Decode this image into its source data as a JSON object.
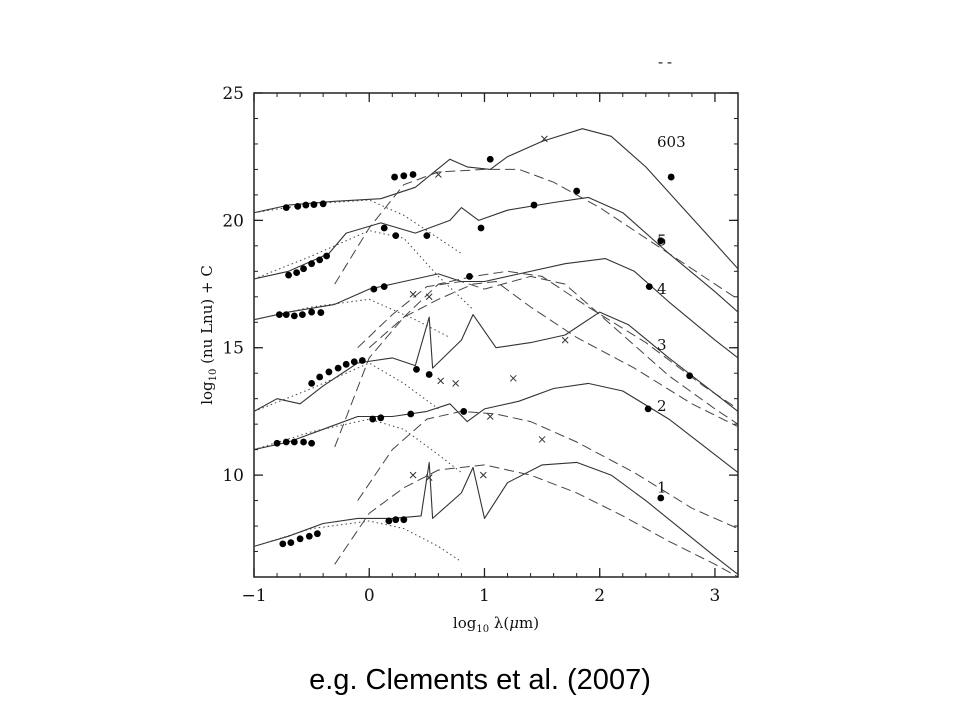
{
  "slide": {
    "caption": "e.g. Clements et al. (2007)",
    "corner_mark": "--"
  },
  "chart_data": {
    "type": "line",
    "title": "",
    "xlabel": "log10 λ(μm)",
    "ylabel": "log10 (nu Lnu) + C",
    "xlim": [
      -1,
      3.2
    ],
    "ylim": [
      6,
      25
    ],
    "xticks": [
      -1,
      0,
      1,
      2,
      3
    ],
    "xtick_labels": [
      "−1",
      "0",
      "1",
      "2",
      "3"
    ],
    "yticks": [
      10,
      15,
      20,
      25
    ],
    "ytick_labels": [
      "10",
      "15",
      "20",
      "25"
    ],
    "grid": false,
    "legend": "none",
    "series": [
      {
        "name": "603",
        "total_model": [
          [
            -1,
            20.3
          ],
          [
            -0.7,
            20.6
          ],
          [
            -0.3,
            20.75
          ],
          [
            0.1,
            20.85
          ],
          [
            0.4,
            21.3
          ],
          [
            0.7,
            22.4
          ],
          [
            0.85,
            22.1
          ],
          [
            1.05,
            22.0
          ],
          [
            1.2,
            22.5
          ],
          [
            1.5,
            23.1
          ],
          [
            1.85,
            23.6
          ],
          [
            2.1,
            23.3
          ],
          [
            2.4,
            22.1
          ],
          [
            2.7,
            20.6
          ],
          [
            3.0,
            19.1
          ],
          [
            3.2,
            18.1
          ]
        ],
        "stellar_model": [
          [
            -1,
            20.3
          ],
          [
            -0.5,
            20.65
          ],
          [
            0,
            20.8
          ],
          [
            0.3,
            20.2
          ],
          [
            0.5,
            19.6
          ],
          [
            0.8,
            18.7
          ]
        ],
        "dust_model": [
          [
            -0.3,
            17.5
          ],
          [
            0,
            19.7
          ],
          [
            0.3,
            21.4
          ],
          [
            0.6,
            21.9
          ],
          [
            1.0,
            22.0
          ],
          [
            1.3,
            22.0
          ],
          [
            1.6,
            21.5
          ],
          [
            2.0,
            20.5
          ],
          [
            2.5,
            19.0
          ],
          [
            3.0,
            17.5
          ],
          [
            3.2,
            16.9
          ]
        ],
        "data_points": [
          [
            -0.72,
            20.5
          ],
          [
            -0.62,
            20.55
          ],
          [
            -0.55,
            20.6
          ],
          [
            -0.48,
            20.62
          ],
          [
            -0.4,
            20.65
          ],
          [
            0.22,
            21.7
          ],
          [
            0.3,
            21.75
          ],
          [
            0.38,
            21.8
          ],
          [
            1.05,
            22.4
          ],
          [
            1.8,
            21.15
          ],
          [
            2.62,
            21.7
          ]
        ],
        "upper_limits": [
          [
            0.6,
            21.8
          ],
          [
            1.52,
            23.2
          ]
        ]
      },
      {
        "name": "5",
        "total_model": [
          [
            -1,
            17.7
          ],
          [
            -0.7,
            18.0
          ],
          [
            -0.35,
            18.7
          ],
          [
            -0.2,
            19.5
          ],
          [
            0.1,
            19.9
          ],
          [
            0.4,
            19.5
          ],
          [
            0.7,
            20.0
          ],
          [
            0.8,
            20.5
          ],
          [
            0.95,
            20.0
          ],
          [
            1.2,
            20.4
          ],
          [
            1.6,
            20.7
          ],
          [
            1.9,
            20.9
          ],
          [
            2.2,
            20.3
          ],
          [
            2.6,
            18.7
          ],
          [
            3.0,
            17.2
          ],
          [
            3.2,
            16.4
          ]
        ],
        "stellar_model": [
          [
            -1,
            17.7
          ],
          [
            -0.5,
            18.6
          ],
          [
            0,
            19.6
          ],
          [
            0.3,
            19.3
          ],
          [
            0.6,
            17.8
          ],
          [
            0.9,
            16.5
          ]
        ],
        "dust_model": [
          [
            -0.1,
            15.0
          ],
          [
            0.2,
            16.3
          ],
          [
            0.5,
            17.4
          ],
          [
            0.8,
            17.6
          ],
          [
            1.0,
            17.3
          ],
          [
            1.4,
            17.8
          ],
          [
            1.7,
            17.5
          ],
          [
            2.1,
            15.9
          ],
          [
            2.6,
            13.9
          ],
          [
            3.0,
            12.6
          ],
          [
            3.2,
            12.0
          ]
        ],
        "data_points": [
          [
            -0.7,
            17.85
          ],
          [
            -0.63,
            17.95
          ],
          [
            -0.57,
            18.1
          ],
          [
            -0.5,
            18.3
          ],
          [
            -0.43,
            18.45
          ],
          [
            -0.37,
            18.6
          ],
          [
            0.13,
            19.7
          ],
          [
            0.23,
            19.4
          ],
          [
            0.5,
            19.4
          ],
          [
            0.97,
            19.7
          ],
          [
            1.43,
            20.6
          ],
          [
            2.53,
            19.2
          ]
        ],
        "upper_limits": []
      },
      {
        "name": "4",
        "total_model": [
          [
            -1,
            16.1
          ],
          [
            -0.7,
            16.4
          ],
          [
            -0.3,
            16.7
          ],
          [
            0,
            17.3
          ],
          [
            0.3,
            17.6
          ],
          [
            0.6,
            17.9
          ],
          [
            0.8,
            17.6
          ],
          [
            1.0,
            17.6
          ],
          [
            1.3,
            17.9
          ],
          [
            1.7,
            18.3
          ],
          [
            2.05,
            18.5
          ],
          [
            2.3,
            18.0
          ],
          [
            2.6,
            16.8
          ],
          [
            3.0,
            15.3
          ],
          [
            3.2,
            14.6
          ]
        ],
        "stellar_model": [
          [
            -1,
            16.1
          ],
          [
            -0.5,
            16.6
          ],
          [
            0,
            16.9
          ],
          [
            0.4,
            16.1
          ],
          [
            0.7,
            15.4
          ]
        ],
        "dust_model": [
          [
            0,
            15.0
          ],
          [
            0.3,
            16.2
          ],
          [
            0.6,
            17.5
          ],
          [
            0.9,
            17.8
          ],
          [
            1.2,
            18.0
          ],
          [
            1.5,
            17.8
          ],
          [
            1.9,
            16.6
          ],
          [
            2.4,
            15.2
          ],
          [
            2.9,
            13.5
          ],
          [
            3.2,
            12.6
          ]
        ],
        "data_points": [
          [
            -0.78,
            16.3
          ],
          [
            -0.72,
            16.3
          ],
          [
            -0.65,
            16.25
          ],
          [
            -0.58,
            16.3
          ],
          [
            -0.5,
            16.4
          ],
          [
            -0.42,
            16.38
          ],
          [
            0.04,
            17.3
          ],
          [
            0.13,
            17.4
          ],
          [
            0.87,
            17.8
          ],
          [
            2.43,
            17.4
          ]
        ],
        "upper_limits": [
          [
            0.38,
            17.1
          ],
          [
            0.52,
            17.0
          ]
        ]
      },
      {
        "name": "3",
        "total_model": [
          [
            -1,
            12.5
          ],
          [
            -0.8,
            13.0
          ],
          [
            -0.6,
            12.8
          ],
          [
            -0.4,
            13.5
          ],
          [
            -0.1,
            14.4
          ],
          [
            0.2,
            14.6
          ],
          [
            0.4,
            14.3
          ],
          [
            0.52,
            16.2
          ],
          [
            0.55,
            14.2
          ],
          [
            0.8,
            15.3
          ],
          [
            0.9,
            16.3
          ],
          [
            1.1,
            15.0
          ],
          [
            1.4,
            15.2
          ],
          [
            1.7,
            15.5
          ],
          [
            2.0,
            16.4
          ],
          [
            2.25,
            15.9
          ],
          [
            2.6,
            14.6
          ],
          [
            3.0,
            13.2
          ],
          [
            3.2,
            12.5
          ]
        ],
        "stellar_model": [
          [
            -1,
            12.5
          ],
          [
            -0.5,
            13.4
          ],
          [
            0,
            14.4
          ],
          [
            0.3,
            13.6
          ],
          [
            0.6,
            12.6
          ]
        ],
        "dust_model": [
          [
            -0.3,
            11.1
          ],
          [
            0,
            14.6
          ],
          [
            0.3,
            16.2
          ],
          [
            0.6,
            16.9
          ],
          [
            0.9,
            17.5
          ],
          [
            1.1,
            17.6
          ],
          [
            1.4,
            16.6
          ],
          [
            1.8,
            15.4
          ],
          [
            2.3,
            14.2
          ],
          [
            2.8,
            12.8
          ],
          [
            3.2,
            11.9
          ]
        ],
        "data_points": [
          [
            -0.5,
            13.6
          ],
          [
            -0.43,
            13.85
          ],
          [
            -0.35,
            14.05
          ],
          [
            -0.27,
            14.2
          ],
          [
            -0.2,
            14.35
          ],
          [
            -0.13,
            14.45
          ],
          [
            -0.06,
            14.5
          ],
          [
            0.41,
            14.15
          ],
          [
            0.52,
            13.95
          ],
          [
            2.78,
            13.9
          ]
        ],
        "upper_limits": [
          [
            0.62,
            13.7
          ],
          [
            0.75,
            13.6
          ],
          [
            1.25,
            13.8
          ],
          [
            1.7,
            15.3
          ]
        ]
      },
      {
        "name": "2",
        "total_model": [
          [
            -1,
            11.0
          ],
          [
            -0.7,
            11.3
          ],
          [
            -0.4,
            11.8
          ],
          [
            -0.1,
            12.3
          ],
          [
            0.2,
            12.3
          ],
          [
            0.5,
            12.5
          ],
          [
            0.7,
            12.8
          ],
          [
            0.85,
            12.1
          ],
          [
            1.0,
            12.6
          ],
          [
            1.3,
            12.9
          ],
          [
            1.6,
            13.4
          ],
          [
            1.9,
            13.6
          ],
          [
            2.2,
            13.3
          ],
          [
            2.6,
            12.2
          ],
          [
            3.0,
            10.8
          ],
          [
            3.2,
            10.1
          ]
        ],
        "stellar_model": [
          [
            -1,
            11.0
          ],
          [
            -0.5,
            11.7
          ],
          [
            0,
            12.2
          ],
          [
            0.3,
            11.8
          ],
          [
            0.6,
            10.8
          ],
          [
            0.8,
            10.1
          ]
        ],
        "dust_model": [
          [
            -0.1,
            9.0
          ],
          [
            0.2,
            11.0
          ],
          [
            0.5,
            12.2
          ],
          [
            0.8,
            12.5
          ],
          [
            1.1,
            12.4
          ],
          [
            1.4,
            12.1
          ],
          [
            1.8,
            11.3
          ],
          [
            2.3,
            10.1
          ],
          [
            2.8,
            8.7
          ],
          [
            3.2,
            7.9
          ]
        ],
        "data_points": [
          [
            -0.8,
            11.25
          ],
          [
            -0.72,
            11.3
          ],
          [
            -0.65,
            11.3
          ],
          [
            -0.57,
            11.3
          ],
          [
            -0.5,
            11.25
          ],
          [
            0.03,
            12.2
          ],
          [
            0.1,
            12.25
          ],
          [
            0.36,
            12.4
          ],
          [
            0.82,
            12.5
          ],
          [
            2.42,
            12.6
          ]
        ],
        "upper_limits": [
          [
            1.05,
            12.3
          ],
          [
            1.5,
            11.4
          ]
        ]
      },
      {
        "name": "1",
        "total_model": [
          [
            -1,
            7.2
          ],
          [
            -0.7,
            7.6
          ],
          [
            -0.4,
            8.1
          ],
          [
            -0.1,
            8.3
          ],
          [
            0.2,
            8.3
          ],
          [
            0.45,
            8.4
          ],
          [
            0.52,
            10.5
          ],
          [
            0.55,
            8.3
          ],
          [
            0.8,
            9.3
          ],
          [
            0.9,
            10.3
          ],
          [
            1.0,
            8.3
          ],
          [
            1.2,
            9.7
          ],
          [
            1.5,
            10.4
          ],
          [
            1.8,
            10.5
          ],
          [
            2.1,
            10.0
          ],
          [
            2.4,
            9.0
          ],
          [
            2.7,
            7.9
          ],
          [
            3.0,
            6.8
          ],
          [
            3.2,
            6.1
          ]
        ],
        "stellar_model": [
          [
            -1,
            7.2
          ],
          [
            -0.5,
            7.9
          ],
          [
            0,
            8.2
          ],
          [
            0.3,
            7.9
          ],
          [
            0.6,
            7.2
          ],
          [
            0.8,
            6.6
          ]
        ],
        "dust_model": [
          [
            -0.3,
            6.5
          ],
          [
            0,
            8.5
          ],
          [
            0.3,
            9.5
          ],
          [
            0.6,
            10.2
          ],
          [
            1.0,
            10.4
          ],
          [
            1.4,
            10.0
          ],
          [
            1.8,
            9.3
          ],
          [
            2.2,
            8.4
          ],
          [
            2.6,
            7.4
          ],
          [
            3.0,
            6.5
          ],
          [
            3.2,
            6.0
          ]
        ],
        "data_points": [
          [
            -0.75,
            7.3
          ],
          [
            -0.68,
            7.35
          ],
          [
            -0.6,
            7.5
          ],
          [
            -0.52,
            7.6
          ],
          [
            -0.45,
            7.7
          ],
          [
            0.17,
            8.2
          ],
          [
            0.23,
            8.25
          ],
          [
            0.3,
            8.25
          ],
          [
            2.53,
            9.1
          ]
        ],
        "upper_limits": [
          [
            0.38,
            10.0
          ],
          [
            0.52,
            9.9
          ],
          [
            0.99,
            10.0
          ]
        ]
      }
    ]
  }
}
